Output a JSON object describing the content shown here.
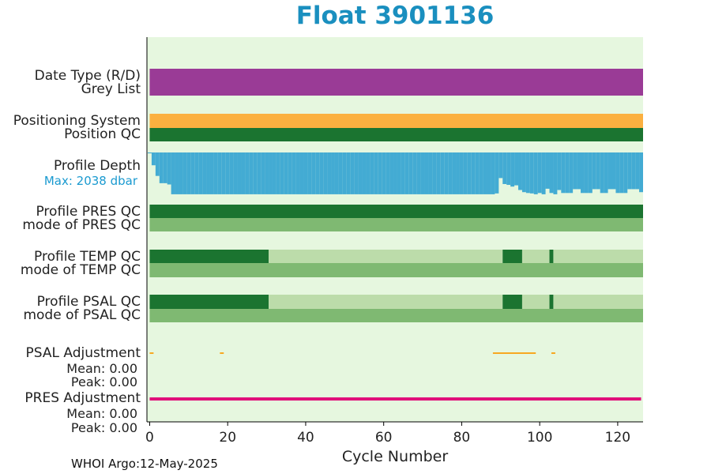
{
  "title": "Float 3901136",
  "footer": "WHOI Argo:12-May-2025",
  "labels": {
    "date_type": "Date Type (R/D)",
    "grey_list": "Grey List",
    "positioning_system": "Positioning System",
    "position_qc": "Position QC",
    "profile_depth": "Profile Depth",
    "max_depth": "Max: 2038 dbar",
    "profile_pres_qc": "Profile PRES QC",
    "mode_pres_qc": "mode of PRES QC",
    "profile_temp_qc": "Profile TEMP QC",
    "mode_temp_qc": "mode of TEMP QC",
    "profile_psal_qc": "Profile PSAL QC",
    "mode_psal_qc": "mode of PSAL QC",
    "psal_adjustment": "PSAL Adjustment",
    "psal_mean": "Mean: 0.00",
    "psal_peak": "Peak: 0.00",
    "pres_adjustment": "PRES Adjustment",
    "pres_mean": "Mean: 0.00",
    "pres_peak": "Peak: 0.00"
  },
  "colors": {
    "background": "#e6f7df",
    "date_type": "#9a3b96",
    "positioning": "#fbb040",
    "dark_green": "#1b7430",
    "mid_green": "#7fb972",
    "light_green": "#bcdcaa",
    "depth": "#43abd3",
    "psal_adj": "#f7a822",
    "pres_adj": "#e0107a"
  },
  "chart_data": {
    "type": "heatmap",
    "title": "Float 3901136",
    "xlabel": "Cycle Number",
    "xlim": [
      -0.7,
      126.5
    ],
    "xticks": [
      0,
      20,
      40,
      60,
      80,
      100,
      120
    ],
    "rows": [
      {
        "name": "Date Type (R/D)",
        "segments": [
          {
            "from": 0,
            "to": 126.5,
            "color": "#9a3b96"
          }
        ]
      },
      {
        "name": "Grey List",
        "segments": [
          {
            "from": 0,
            "to": 126.5,
            "color": "#9a3b96"
          }
        ]
      },
      {
        "name": "Positioning System",
        "segments": [
          {
            "from": 0,
            "to": 126.5,
            "color": "#fbb040"
          }
        ]
      },
      {
        "name": "Position QC",
        "segments": [
          {
            "from": 0,
            "to": 126.5,
            "color": "#1b7430"
          }
        ]
      },
      {
        "name": "Profile PRES QC",
        "segments": [
          {
            "from": 0,
            "to": 126.5,
            "color": "#1b7430"
          }
        ]
      },
      {
        "name": "mode of PRES QC",
        "segments": [
          {
            "from": 0,
            "to": 126.5,
            "color": "#7fb972"
          }
        ]
      },
      {
        "name": "Profile TEMP QC",
        "segments": [
          {
            "from": 0,
            "to": 30.5,
            "color": "#1b7430"
          },
          {
            "from": 30.5,
            "to": 90.5,
            "color": "#bcdcaa"
          },
          {
            "from": 90.5,
            "to": 95.5,
            "color": "#1b7430"
          },
          {
            "from": 95.5,
            "to": 102.5,
            "color": "#bcdcaa"
          },
          {
            "from": 102.5,
            "to": 103.5,
            "color": "#1b7430"
          },
          {
            "from": 103.5,
            "to": 126.5,
            "color": "#bcdcaa"
          }
        ]
      },
      {
        "name": "mode of TEMP QC",
        "segments": [
          {
            "from": 0,
            "to": 126.5,
            "color": "#7fb972"
          }
        ]
      },
      {
        "name": "Profile PSAL QC",
        "segments": [
          {
            "from": 0,
            "to": 30.5,
            "color": "#1b7430"
          },
          {
            "from": 30.5,
            "to": 90.5,
            "color": "#bcdcaa"
          },
          {
            "from": 90.5,
            "to": 95.5,
            "color": "#1b7430"
          },
          {
            "from": 95.5,
            "to": 102.5,
            "color": "#bcdcaa"
          },
          {
            "from": 102.5,
            "to": 103.5,
            "color": "#1b7430"
          },
          {
            "from": 103.5,
            "to": 126.5,
            "color": "#bcdcaa"
          }
        ]
      },
      {
        "name": "mode of PSAL QC",
        "segments": [
          {
            "from": 0,
            "to": 126.5,
            "color": "#7fb972"
          }
        ]
      }
    ],
    "profile_depth": {
      "max_dbar": 2038,
      "cycles": [
        [
          0,
          0.02
        ],
        [
          1,
          0.3
        ],
        [
          2,
          0.55
        ],
        [
          3,
          0.72
        ],
        [
          4,
          0.72
        ],
        [
          5,
          0.75
        ],
        [
          6,
          0.98
        ],
        [
          7,
          0.98
        ],
        [
          8,
          0.98
        ],
        [
          9,
          0.98
        ],
        [
          10,
          0.98
        ],
        [
          11,
          0.98
        ],
        [
          12,
          0.98
        ],
        [
          13,
          0.98
        ],
        [
          14,
          0.98
        ],
        [
          15,
          0.98
        ],
        [
          16,
          0.98
        ],
        [
          17,
          0.98
        ],
        [
          18,
          0.98
        ],
        [
          19,
          0.98
        ],
        [
          20,
          0.98
        ],
        [
          21,
          0.98
        ],
        [
          22,
          0.98
        ],
        [
          23,
          0.98
        ],
        [
          24,
          0.98
        ],
        [
          25,
          0.98
        ],
        [
          26,
          0.98
        ],
        [
          27,
          0.98
        ],
        [
          28,
          0.98
        ],
        [
          29,
          0.98
        ],
        [
          30,
          0.98
        ],
        [
          31,
          0.98
        ],
        [
          32,
          0.98
        ],
        [
          33,
          0.98
        ],
        [
          34,
          0.98
        ],
        [
          35,
          0.98
        ],
        [
          36,
          0.98
        ],
        [
          37,
          0.98
        ],
        [
          38,
          0.98
        ],
        [
          39,
          0.98
        ],
        [
          40,
          0.98
        ],
        [
          41,
          0.98
        ],
        [
          42,
          0.98
        ],
        [
          43,
          0.98
        ],
        [
          44,
          0.98
        ],
        [
          45,
          0.98
        ],
        [
          46,
          0.98
        ],
        [
          47,
          0.98
        ],
        [
          48,
          0.98
        ],
        [
          49,
          0.98
        ],
        [
          50,
          0.98
        ],
        [
          51,
          0.98
        ],
        [
          52,
          0.98
        ],
        [
          53,
          0.98
        ],
        [
          54,
          0.98
        ],
        [
          55,
          0.98
        ],
        [
          56,
          0.98
        ],
        [
          57,
          0.98
        ],
        [
          58,
          0.98
        ],
        [
          59,
          0.98
        ],
        [
          60,
          0.98
        ],
        [
          61,
          0.98
        ],
        [
          62,
          0.98
        ],
        [
          63,
          0.98
        ],
        [
          64,
          0.98
        ],
        [
          65,
          0.98
        ],
        [
          66,
          0.98
        ],
        [
          67,
          0.98
        ],
        [
          68,
          0.98
        ],
        [
          69,
          0.98
        ],
        [
          70,
          0.98
        ],
        [
          71,
          0.98
        ],
        [
          72,
          0.98
        ],
        [
          73,
          0.98
        ],
        [
          74,
          0.98
        ],
        [
          75,
          0.98
        ],
        [
          76,
          0.98
        ],
        [
          77,
          0.98
        ],
        [
          78,
          0.98
        ],
        [
          79,
          0.98
        ],
        [
          80,
          0.98
        ],
        [
          81,
          0.98
        ],
        [
          82,
          0.98
        ],
        [
          83,
          0.98
        ],
        [
          84,
          0.98
        ],
        [
          85,
          0.98
        ],
        [
          86,
          0.98
        ],
        [
          87,
          0.98
        ],
        [
          88,
          0.98
        ],
        [
          89,
          0.96
        ],
        [
          90,
          0.6
        ],
        [
          91,
          0.74
        ],
        [
          92,
          0.76
        ],
        [
          93,
          0.8
        ],
        [
          94,
          0.77
        ],
        [
          95,
          0.88
        ],
        [
          96,
          0.93
        ],
        [
          97,
          0.95
        ],
        [
          98,
          0.96
        ],
        [
          99,
          0.98
        ],
        [
          100,
          0.95
        ],
        [
          101,
          0.98
        ],
        [
          102,
          0.85
        ],
        [
          103,
          0.95
        ],
        [
          104,
          0.98
        ],
        [
          105,
          0.88
        ],
        [
          106,
          0.95
        ],
        [
          107,
          0.95
        ],
        [
          108,
          0.95
        ],
        [
          109,
          0.86
        ],
        [
          110,
          0.86
        ],
        [
          111,
          0.95
        ],
        [
          112,
          0.95
        ],
        [
          113,
          0.95
        ],
        [
          114,
          0.86
        ],
        [
          115,
          0.86
        ],
        [
          116,
          0.95
        ],
        [
          117,
          0.95
        ],
        [
          118,
          0.86
        ],
        [
          119,
          0.86
        ],
        [
          120,
          0.95
        ],
        [
          121,
          0.95
        ],
        [
          122,
          0.95
        ],
        [
          123,
          0.86
        ],
        [
          124,
          0.86
        ],
        [
          125,
          0.86
        ],
        [
          126,
          0.93
        ]
      ]
    },
    "psal_adjustment": {
      "mean": 0.0,
      "peak": 0.0,
      "segments": [
        [
          0,
          1
        ],
        [
          18,
          19
        ],
        [
          88,
          99
        ],
        [
          103,
          104
        ]
      ]
    },
    "pres_adjustment": {
      "mean": 0.0,
      "peak": 0.0,
      "segments": [
        [
          0,
          126
        ]
      ]
    }
  }
}
